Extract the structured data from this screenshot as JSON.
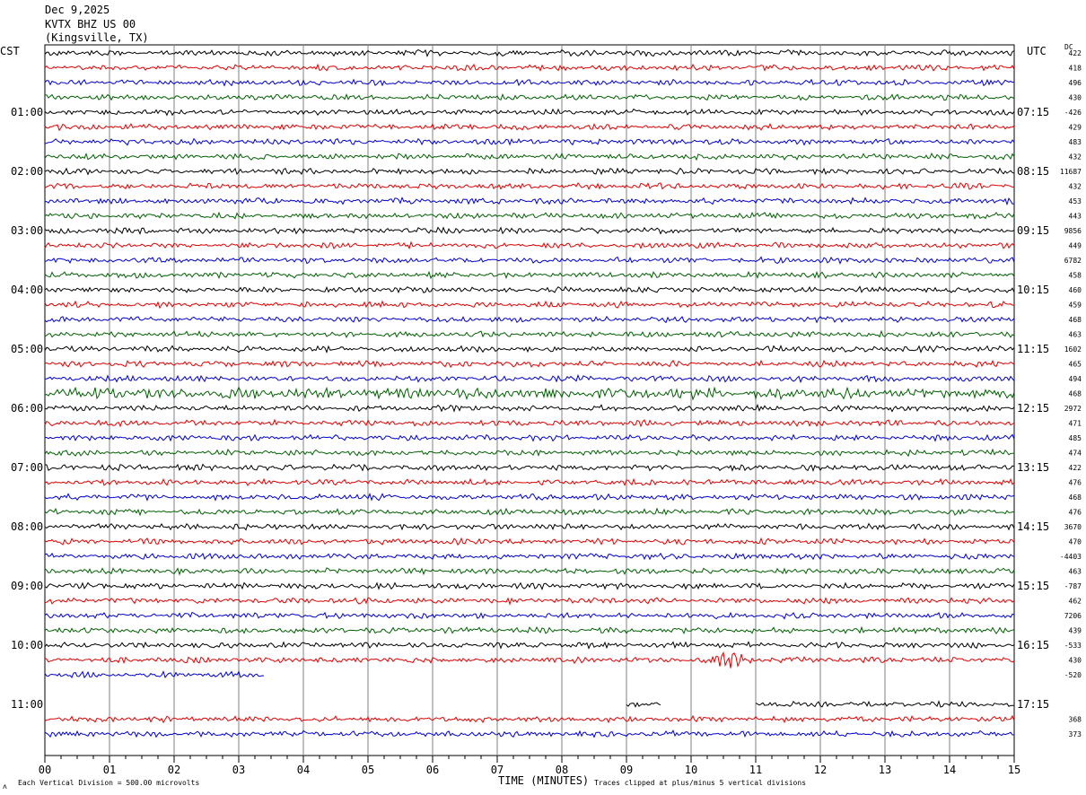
{
  "header": {
    "date": "Dec 9,2025",
    "station": "KVTX BHZ US 00",
    "location": "(Kingsville, TX)"
  },
  "left_tz": "CST",
  "right_tz": "UTC",
  "dc_label": "DC",
  "footer": {
    "scale_note": "Each Vertical Division =  500.00 microvolts",
    "xlabel": "TIME (MINUTES)",
    "clip_note": "Traces clipped at plus/minus 5 vertical divisions"
  },
  "colors": {
    "trace_cycle": [
      "#000000",
      "#e00000",
      "#0000d0",
      "#006000"
    ],
    "grid": "#808080"
  },
  "chart_data": {
    "type": "line",
    "title": "KVTX BHZ US 00 helicorder",
    "xlabel": "TIME (MINUTES)",
    "xlim": [
      0,
      15
    ],
    "x_ticks": [
      "00",
      "01",
      "02",
      "03",
      "04",
      "05",
      "06",
      "07",
      "08",
      "09",
      "10",
      "11",
      "12",
      "13",
      "14",
      "15"
    ],
    "left_hour_labels": [
      "01:00",
      "02:00",
      "03:00",
      "04:00",
      "05:00",
      "06:00",
      "07:00",
      "08:00",
      "09:00",
      "10:00",
      "11:00"
    ],
    "right_hour_labels": [
      "07:15",
      "08:15",
      "09:15",
      "10:15",
      "11:15",
      "12:15",
      "13:15",
      "14:15",
      "15:15",
      "16:15",
      "17:15"
    ],
    "dc_offsets": [
      "422",
      "418",
      "496",
      "430",
      "-426",
      "429",
      "483",
      "432",
      "11687",
      "432",
      "453",
      "443",
      "9856",
      "449",
      "6782",
      "458",
      "460",
      "459",
      "468",
      "463",
      "1602",
      "465",
      "494",
      "468",
      "2972",
      "471",
      "485",
      "474",
      "422",
      "476",
      "468",
      "476",
      "3670",
      "470",
      "-4403",
      "463",
      "-787",
      "462",
      "7206",
      "439",
      "-533",
      "430",
      "-520",
      "",
      "",
      "368",
      "373"
    ],
    "rows": [
      {
        "end": 15
      },
      {
        "end": 15
      },
      {
        "end": 15
      },
      {
        "end": 15
      },
      {
        "end": 15
      },
      {
        "end": 15
      },
      {
        "end": 15
      },
      {
        "end": 15
      },
      {
        "end": 15
      },
      {
        "end": 15
      },
      {
        "end": 15
      },
      {
        "end": 15
      },
      {
        "end": 15
      },
      {
        "end": 15
      },
      {
        "end": 15
      },
      {
        "end": 15
      },
      {
        "end": 15
      },
      {
        "end": 15
      },
      {
        "end": 15
      },
      {
        "end": 15
      },
      {
        "end": 15
      },
      {
        "end": 15
      },
      {
        "end": 15
      },
      {
        "end": 15,
        "loud": 1
      },
      {
        "end": 15
      },
      {
        "end": 15
      },
      {
        "end": 15
      },
      {
        "end": 15
      },
      {
        "end": 15
      },
      {
        "end": 15
      },
      {
        "end": 15
      },
      {
        "end": 15
      },
      {
        "end": 15
      },
      {
        "end": 15
      },
      {
        "end": 15
      },
      {
        "end": 15
      },
      {
        "end": 15
      },
      {
        "end": 15
      },
      {
        "end": 15
      },
      {
        "end": 15
      },
      {
        "end": 15
      },
      {
        "end": 15,
        "event": [
          10.0,
          11.2
        ]
      },
      {
        "end": 3.4
      },
      {
        "segments": []
      },
      {
        "segments": [
          [
            9.0,
            9.55
          ],
          [
            11.0,
            15
          ]
        ]
      },
      {
        "end": 15
      },
      {
        "end": 15
      }
    ]
  }
}
